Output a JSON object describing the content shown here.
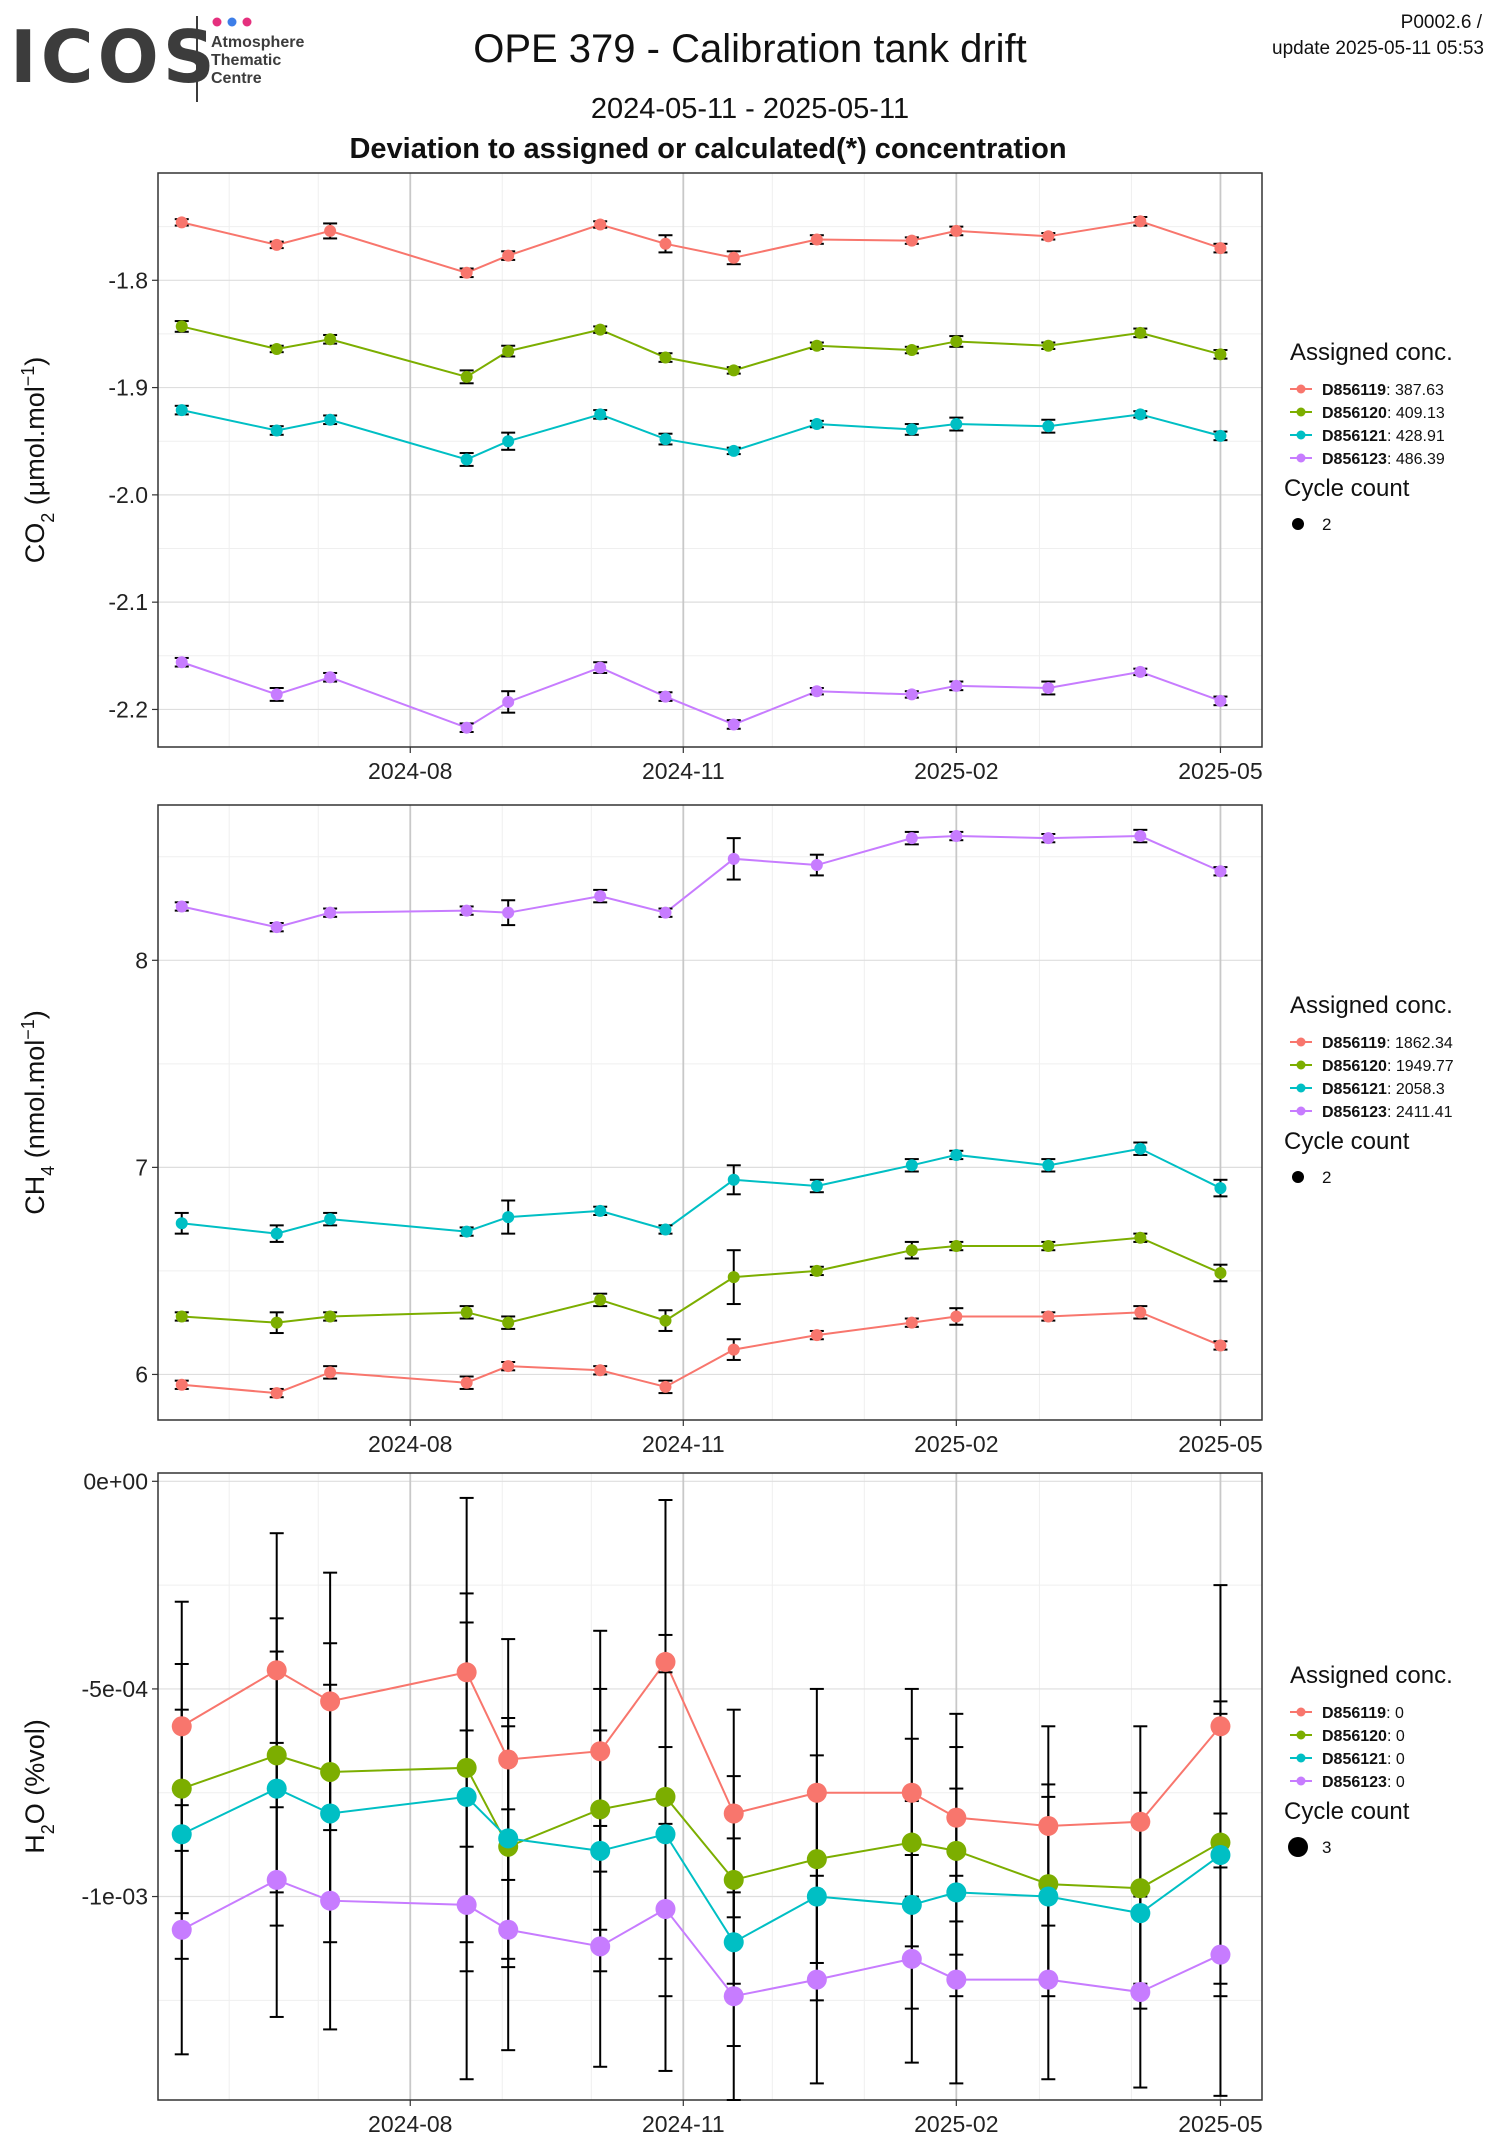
{
  "header": {
    "logo_text": "ICOS",
    "logo_sub": [
      "Atmosphere",
      "Thematic",
      "Centre"
    ],
    "logo_dot_colors": [
      "#e5307e",
      "#3d7ee8",
      "#e5307e"
    ],
    "title": "OPE 379 - Calibration tank drift",
    "subtitle": "2024-05-11 - 2025-05-11",
    "section_title": "Deviation to assigned or calculated(*) concentration",
    "version": "P0002.6 /",
    "update": "update  2025-05-11 05:53"
  },
  "legend": {
    "title": "Assigned conc.",
    "cycle_title": "Cycle count"
  },
  "x_axis": {
    "ticks": [
      "2024-08",
      "2024-11",
      "2025-02",
      "2025-05"
    ]
  },
  "series_meta": [
    {
      "name": "D856119",
      "color": "#f8766d"
    },
    {
      "name": "D856120",
      "color": "#7cae00"
    },
    {
      "name": "D856121",
      "color": "#00bfc4"
    },
    {
      "name": "D856123",
      "color": "#c77cff"
    }
  ],
  "chart_data": [
    {
      "type": "line",
      "ylabel_main": "CO",
      "ylabel_sub": "2",
      "ylabel_rest": " (µmol.mol",
      "ylabel_sup": "−1",
      "ylabel_end": ")",
      "ylim": [
        -2.235,
        -1.7
      ],
      "yticks": [
        -1.8,
        -1.9,
        -2.0,
        -2.1,
        -2.2
      ],
      "ytick_labels": [
        "-1.8",
        "-1.9",
        "-2.0",
        "-2.1",
        "-2.2"
      ],
      "cycle_count": "2",
      "x": [
        "2024-05-16",
        "2024-06-17",
        "2024-07-05",
        "2024-08-20",
        "2024-09-03",
        "2024-10-04",
        "2024-10-26",
        "2024-11-18",
        "2024-12-16",
        "2025-01-17",
        "2025-02-01",
        "2025-03-04",
        "2025-04-04",
        "2025-05-01"
      ],
      "series": [
        {
          "name": "D856119",
          "label": "387.63",
          "values": [
            -1.746,
            -1.767,
            -1.754,
            -1.793,
            -1.777,
            -1.748,
            -1.766,
            -1.779,
            -1.762,
            -1.763,
            -1.754,
            -1.759,
            -1.745,
            -1.77
          ],
          "err": [
            0.003,
            0.003,
            0.007,
            0.004,
            0.004,
            0.003,
            0.008,
            0.006,
            0.004,
            0.003,
            0.004,
            0.003,
            0.004,
            0.004
          ]
        },
        {
          "name": "D856120",
          "label": "409.13",
          "values": [
            -1.843,
            -1.864,
            -1.855,
            -1.89,
            -1.866,
            -1.846,
            -1.872,
            -1.884,
            -1.861,
            -1.865,
            -1.857,
            -1.861,
            -1.849,
            -1.869
          ],
          "err": [
            0.005,
            0.003,
            0.004,
            0.006,
            0.005,
            0.003,
            0.004,
            0.003,
            0.003,
            0.003,
            0.005,
            0.003,
            0.004,
            0.004
          ]
        },
        {
          "name": "D856121",
          "label": "428.91",
          "values": [
            -1.921,
            -1.94,
            -1.93,
            -1.967,
            -1.95,
            -1.925,
            -1.948,
            -1.959,
            -1.934,
            -1.939,
            -1.934,
            -1.936,
            -1.925,
            -1.945
          ],
          "err": [
            0.004,
            0.004,
            0.004,
            0.006,
            0.008,
            0.004,
            0.005,
            0.003,
            0.003,
            0.005,
            0.006,
            0.006,
            0.003,
            0.004
          ]
        },
        {
          "name": "D856123",
          "label": "486.39",
          "values": [
            -2.156,
            -2.186,
            -2.17,
            -2.217,
            -2.193,
            -2.161,
            -2.188,
            -2.214,
            -2.183,
            -2.186,
            -2.178,
            -2.18,
            -2.165,
            -2.192
          ],
          "err": [
            0.004,
            0.006,
            0.004,
            0.004,
            0.01,
            0.005,
            0.004,
            0.004,
            0.003,
            0.003,
            0.004,
            0.006,
            0.003,
            0.004
          ]
        }
      ]
    },
    {
      "type": "line",
      "ylabel_main": "CH",
      "ylabel_sub": "4",
      "ylabel_rest": " (nmol.mol",
      "ylabel_sup": "−1",
      "ylabel_end": ")",
      "ylim": [
        5.78,
        8.75
      ],
      "yticks": [
        6,
        7,
        8
      ],
      "ytick_labels": [
        "6",
        "7",
        "8"
      ],
      "cycle_count": "2",
      "x": [
        "2024-05-16",
        "2024-06-17",
        "2024-07-05",
        "2024-08-20",
        "2024-09-03",
        "2024-10-04",
        "2024-10-26",
        "2024-11-18",
        "2024-12-16",
        "2025-01-17",
        "2025-02-01",
        "2025-03-04",
        "2025-04-04",
        "2025-05-01"
      ],
      "series": [
        {
          "name": "D856119",
          "label": "1862.34",
          "values": [
            5.95,
            5.91,
            6.01,
            5.96,
            6.04,
            6.02,
            5.94,
            6.12,
            6.19,
            6.25,
            6.28,
            6.28,
            6.3,
            6.14
          ],
          "err": [
            0.02,
            0.02,
            0.03,
            0.03,
            0.02,
            0.02,
            0.03,
            0.05,
            0.02,
            0.02,
            0.04,
            0.02,
            0.03,
            0.02
          ]
        },
        {
          "name": "D856120",
          "label": "1949.77",
          "values": [
            6.28,
            6.25,
            6.28,
            6.3,
            6.25,
            6.36,
            6.26,
            6.47,
            6.5,
            6.6,
            6.62,
            6.62,
            6.66,
            6.49
          ],
          "err": [
            0.02,
            0.05,
            0.02,
            0.03,
            0.03,
            0.03,
            0.05,
            0.13,
            0.02,
            0.04,
            0.02,
            0.02,
            0.02,
            0.04
          ]
        },
        {
          "name": "D856121",
          "label": "2058.3",
          "values": [
            6.73,
            6.68,
            6.75,
            6.69,
            6.76,
            6.79,
            6.7,
            6.94,
            6.91,
            7.01,
            7.06,
            7.01,
            7.09,
            6.9
          ],
          "err": [
            0.05,
            0.04,
            0.03,
            0.02,
            0.08,
            0.02,
            0.02,
            0.07,
            0.03,
            0.03,
            0.02,
            0.03,
            0.03,
            0.04
          ]
        },
        {
          "name": "D856123",
          "label": "2411.41",
          "values": [
            8.26,
            8.16,
            8.23,
            8.24,
            8.23,
            8.31,
            8.23,
            8.49,
            8.46,
            8.59,
            8.6,
            8.59,
            8.6,
            8.43
          ],
          "err": [
            0.02,
            0.02,
            0.02,
            0.02,
            0.06,
            0.03,
            0.02,
            0.1,
            0.05,
            0.03,
            0.02,
            0.02,
            0.03,
            0.02
          ]
        }
      ]
    },
    {
      "type": "line",
      "ylabel_main": "H",
      "ylabel_sub": "2",
      "ylabel_rest": "O (%vol)",
      "ylabel_sup": "",
      "ylabel_end": "",
      "ylim": [
        -0.00149,
        2e-05
      ],
      "yticks": [
        0,
        -0.0005,
        -0.001
      ],
      "ytick_labels": [
        "0e+00",
        "-5e-04",
        "-1e-03"
      ],
      "cycle_count": "3",
      "x": [
        "2024-05-16",
        "2024-06-17",
        "2024-07-05",
        "2024-08-20",
        "2024-09-03",
        "2024-10-04",
        "2024-10-26",
        "2024-11-18",
        "2024-12-16",
        "2025-01-17",
        "2025-02-01",
        "2025-03-04",
        "2025-04-04",
        "2025-05-01"
      ],
      "series": [
        {
          "name": "D856119",
          "label": "0",
          "values": [
            -0.00059,
            -0.000455,
            -0.00053,
            -0.00046,
            -0.00067,
            -0.00065,
            -0.000435,
            -0.0008,
            -0.00075,
            -0.00075,
            -0.00081,
            -0.00083,
            -0.00082,
            -0.00059
          ],
          "err": [
            0.0003,
            0.00033,
            0.00031,
            0.00042,
            0.00029,
            0.00029,
            0.00039,
            0.00025,
            0.00025,
            0.00025,
            0.00025,
            0.00024,
            0.00023,
            0.00034
          ]
        },
        {
          "name": "D856120",
          "label": "0",
          "values": [
            -0.00074,
            -0.00066,
            -0.0007,
            -0.00069,
            -0.00088,
            -0.00079,
            -0.00076,
            -0.00096,
            -0.00091,
            -0.00087,
            -0.00089,
            -0.00097,
            -0.00098,
            -0.00087
          ],
          "err": [
            0.0003,
            0.00033,
            0.00031,
            0.00042,
            0.00029,
            0.00029,
            0.00039,
            0.00025,
            0.00025,
            0.00025,
            0.00025,
            0.00024,
            0.00023,
            0.00034
          ]
        },
        {
          "name": "D856121",
          "label": "0",
          "values": [
            -0.00085,
            -0.00074,
            -0.0008,
            -0.00076,
            -0.00086,
            -0.00089,
            -0.00085,
            -0.00111,
            -0.001,
            -0.00102,
            -0.00099,
            -0.001,
            -0.00104,
            -0.0009
          ],
          "err": [
            0.0003,
            0.00033,
            0.00031,
            0.00042,
            0.00029,
            0.00029,
            0.00039,
            0.00025,
            0.00025,
            0.00025,
            0.00025,
            0.00024,
            0.00023,
            0.00034
          ]
        },
        {
          "name": "D856123",
          "label": "0",
          "values": [
            -0.00108,
            -0.00096,
            -0.00101,
            -0.00102,
            -0.00108,
            -0.00112,
            -0.00103,
            -0.00124,
            -0.0012,
            -0.00115,
            -0.0012,
            -0.0012,
            -0.00123,
            -0.00114
          ],
          "err": [
            0.0003,
            0.00033,
            0.00031,
            0.00042,
            0.00029,
            0.00029,
            0.00039,
            0.00025,
            0.00025,
            0.00025,
            0.00025,
            0.00024,
            0.00023,
            0.00034
          ]
        }
      ]
    }
  ]
}
